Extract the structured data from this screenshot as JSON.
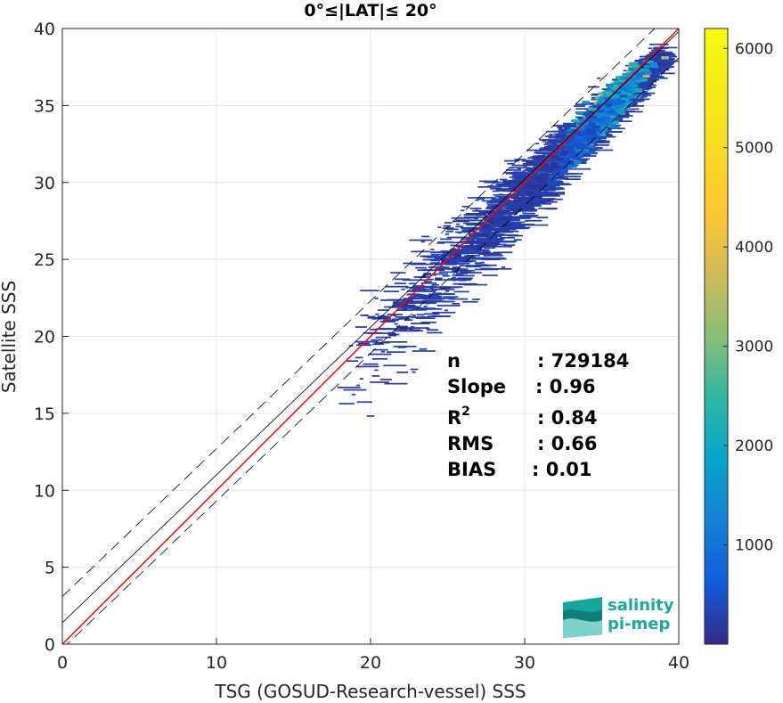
{
  "chart_data": {
    "type": "heatmap",
    "title": "0°≤|LAT|≤ 20°",
    "xlabel": "TSG (GOSUD-Research-vessel) SSS",
    "ylabel": "Satellite SSS",
    "xlim": [
      0,
      40
    ],
    "ylim": [
      0,
      40
    ],
    "xticks": [
      "0",
      "10",
      "20",
      "30",
      "40"
    ],
    "yticks": [
      "0",
      "5",
      "10",
      "15",
      "20",
      "25",
      "30",
      "35",
      "40"
    ],
    "grid": true,
    "colorbar": {
      "range": [
        0,
        6200
      ],
      "ticks": [
        "1000",
        "2000",
        "3000",
        "4000",
        "5000",
        "6000"
      ],
      "colormap": "parula"
    },
    "lines": [
      {
        "name": "identity",
        "color": "#ff0000",
        "slope": 1.0,
        "intercept": 0.0
      },
      {
        "name": "regression",
        "color": "#000000",
        "slope": 0.96,
        "intercept": 1.4
      },
      {
        "name": "upper-bound",
        "color": "#000000",
        "dash": true,
        "slope": 0.96,
        "intercept": 3.1
      },
      {
        "name": "lower-bound",
        "color": "#000000",
        "dash": true,
        "slope": 0.96,
        "intercept": -0.3
      }
    ],
    "density_regions": [
      {
        "x": 35.0,
        "y": 34.8,
        "count": 3200
      },
      {
        "x": 34.5,
        "y": 34.2,
        "count": 2400
      },
      {
        "x": 35.5,
        "y": 35.3,
        "count": 2000
      },
      {
        "x": 34.0,
        "y": 33.5,
        "count": 1200
      },
      {
        "x": 33.0,
        "y": 32.5,
        "count": 600
      },
      {
        "x": 31.0,
        "y": 30.5,
        "count": 150
      },
      {
        "x": 28.0,
        "y": 27.5,
        "count": 60
      },
      {
        "x": 25.0,
        "y": 24.5,
        "count": 30
      },
      {
        "x": 22.0,
        "y": 21.0,
        "count": 15
      }
    ],
    "stats": [
      {
        "label": "n",
        "value": ": 729184"
      },
      {
        "label": "Slope",
        "value": ": 0.96"
      },
      {
        "label": "R",
        "sup": "2",
        "value": ": 0.84"
      },
      {
        "label": "RMS",
        "value": ": 0.66"
      },
      {
        "label": "BIAS",
        "value": ": 0.01"
      }
    ]
  },
  "logo": {
    "line1": "salinity",
    "line2": "pi-mep"
  }
}
